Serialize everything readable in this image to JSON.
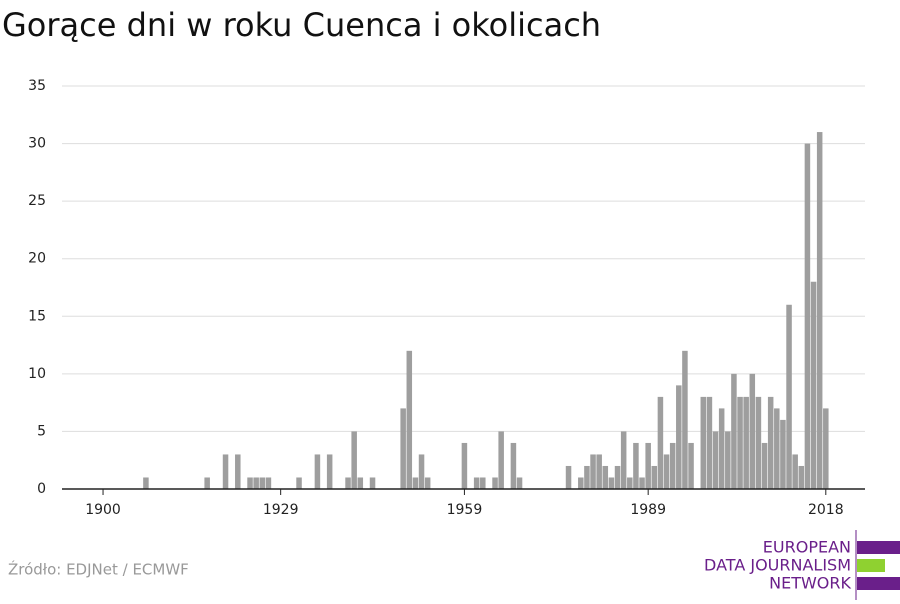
{
  "chart_data": {
    "type": "bar",
    "title": "Gorące dni w roku Cuenca i okolicach",
    "x": [
      1907,
      1917,
      1920,
      1922,
      1924,
      1925,
      1926,
      1927,
      1932,
      1935,
      1937,
      1940,
      1941,
      1942,
      1944,
      1949,
      1950,
      1951,
      1952,
      1953,
      1959,
      1961,
      1962,
      1964,
      1965,
      1967,
      1968,
      1976,
      1978,
      1979,
      1980,
      1981,
      1982,
      1983,
      1984,
      1985,
      1986,
      1987,
      1988,
      1989,
      1990,
      1991,
      1992,
      1993,
      1994,
      1995,
      1996,
      1998,
      1999,
      2000,
      2001,
      2002,
      2003,
      2004,
      2005,
      2006,
      2007,
      2008,
      2009,
      2010,
      2011,
      2012,
      2013,
      2014,
      2015,
      2016,
      2017,
      2018
    ],
    "values": [
      1,
      1,
      3,
      3,
      1,
      1,
      1,
      1,
      1,
      3,
      3,
      1,
      5,
      1,
      1,
      7,
      12,
      1,
      3,
      1,
      4,
      1,
      1,
      1,
      5,
      4,
      1,
      2,
      1,
      2,
      3,
      3,
      2,
      1,
      2,
      5,
      1,
      4,
      1,
      4,
      2,
      8,
      3,
      4,
      9,
      12,
      4,
      8,
      8,
      5,
      7,
      5,
      10,
      8,
      8,
      10,
      8,
      4,
      8,
      7,
      6,
      16,
      3,
      2,
      30,
      18,
      31,
      7
    ],
    "color": "#9e9e9e",
    "xlim": [
      1893.3,
      2024.4
    ],
    "xticks": [
      1900,
      1929,
      1959,
      1989,
      2018
    ],
    "ylim": [
      0,
      35
    ],
    "yticks": [
      0,
      5,
      10,
      15,
      20,
      25,
      30,
      35
    ],
    "grid": true,
    "source": "Źródło: EDJNet / ECMWF",
    "logo": [
      "EUROPEAN",
      "DATA JOURNALISM",
      "NETWORK"
    ]
  }
}
